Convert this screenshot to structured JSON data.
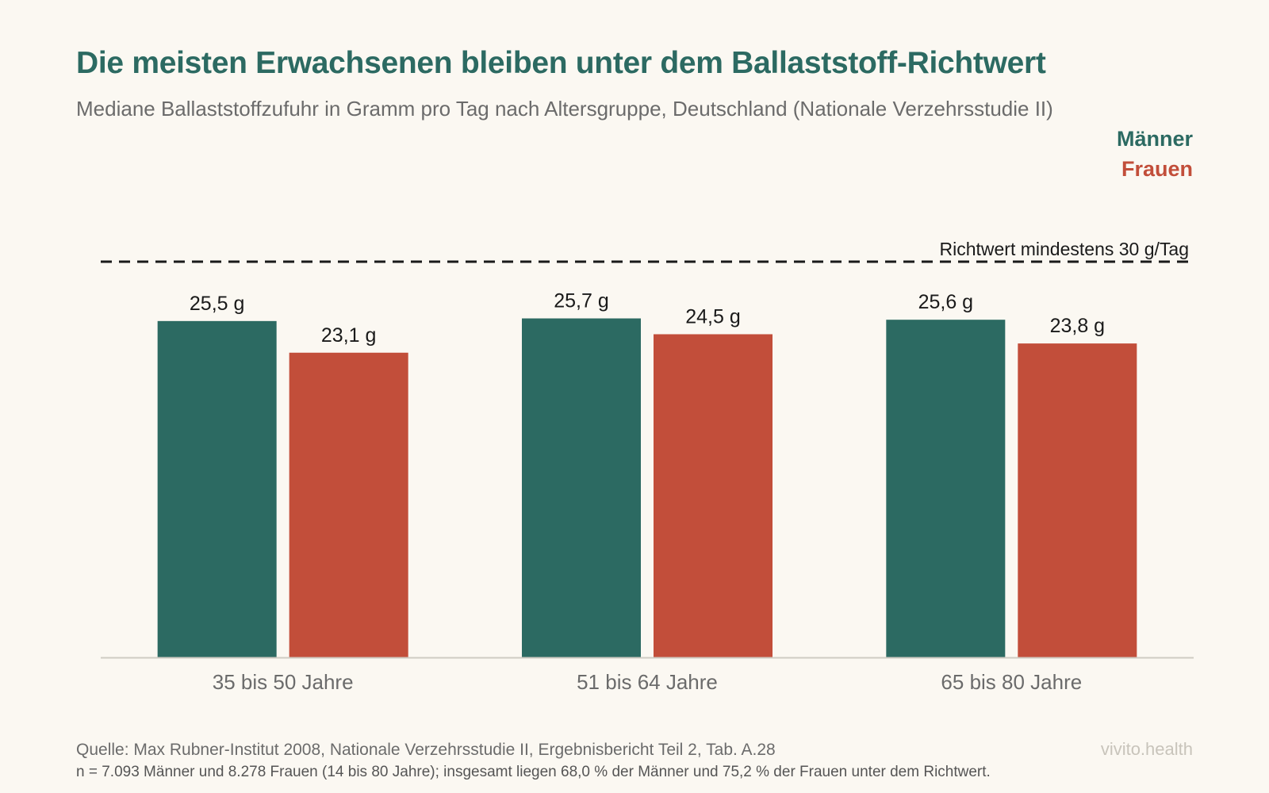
{
  "title": "Die meisten Erwachsenen bleiben unter dem Ballaststoff-Richtwert",
  "subtitle": "Mediane Ballaststoffzufuhr in Gramm pro Tag nach Altersgruppe, Deutschland (Nationale Verzehrsstudie II)",
  "legend": {
    "men": "Männer",
    "women": "Frauen"
  },
  "colors": {
    "men": "#2c6a62",
    "women": "#c24e3a",
    "axis": "#cfcbc3",
    "reference": "#1a1a1a",
    "label": "#1a1a1a",
    "tick": "#6b6b6b"
  },
  "chart_data": {
    "type": "bar",
    "categories": [
      "35 bis 50 Jahre",
      "51 bis 64 Jahre",
      "65 bis 80 Jahre"
    ],
    "series": [
      {
        "name": "Männer",
        "values": [
          25.5,
          25.7,
          25.6
        ],
        "labels": [
          "25,5 g",
          "25,7 g",
          "25,6 g"
        ]
      },
      {
        "name": "Frauen",
        "values": [
          23.1,
          24.5,
          23.8
        ],
        "labels": [
          "23,1 g",
          "24,5 g",
          "23,8 g"
        ]
      }
    ],
    "ylim": [
      0,
      30
    ],
    "reference_line": {
      "value": 30,
      "label": "Richtwert mindestens 30 g/Tag"
    },
    "grid": false,
    "legend_position": "top-right",
    "xlabel": "",
    "ylabel": ""
  },
  "footer": {
    "source": "Quelle: Max Rubner-Institut 2008, Nationale Verzehrsstudie II, Ergebnisbericht Teil 2, Tab. A.28",
    "note": "n = 7.093 Männer und 8.278 Frauen (14 bis 80 Jahre); insgesamt liegen 68,0 % der Männer und 75,2 % der Frauen unter dem Richtwert.",
    "brand": "vivito.health"
  }
}
